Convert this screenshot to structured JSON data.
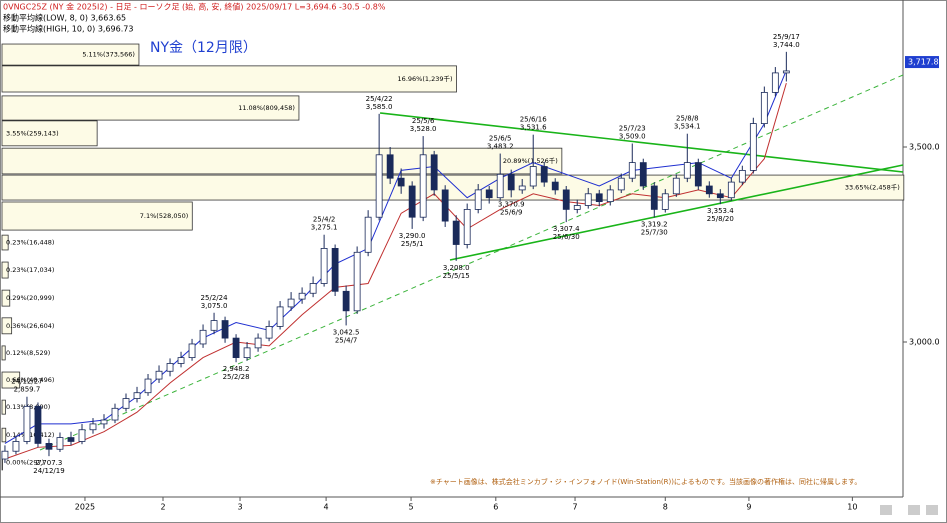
{
  "chart_data": {
    "type": "candlestick",
    "header": "0VNGC25Z (NY 金 2025I2) - 日足 - ローソク足 (始, 高, 安, 終値)  2025/09/17 L=3,694.6 -30.5 -0.8%",
    "ma_low_label": "移動平均線(LOW, 8, 0) 3,663.65",
    "ma_high_label": "移動平均線(HIGH, 10, 0) 3,696.73",
    "title": "NY金（12月限）",
    "note": "※チャート画像は、株式会社ミンカブ・ジ・インフォノイド(Win-Station(R))によるものです。当該画像の著作権は、同社に帰属します。",
    "x": [
      0,
      1,
      2,
      3,
      4,
      5,
      6,
      7,
      8,
      9,
      10,
      11,
      12,
      13,
      14,
      15,
      16,
      17,
      18,
      19,
      20,
      21,
      22,
      23,
      24,
      25,
      26,
      27,
      28,
      29,
      30,
      31,
      32,
      33,
      34,
      35,
      36,
      37,
      38,
      39,
      40,
      41,
      42,
      43,
      44,
      45,
      46,
      47,
      48,
      49,
      50,
      51,
      52,
      53,
      54,
      55,
      56,
      57,
      58,
      59,
      60,
      61,
      62,
      63,
      64,
      65,
      66,
      67,
      68,
      69,
      70,
      71
    ],
    "open": [
      2700,
      2720,
      2745,
      2835,
      2740,
      2725,
      2755,
      2745,
      2775,
      2790,
      2800,
      2830,
      2855,
      2870,
      2905,
      2925,
      2945,
      2960,
      2995,
      3030,
      3055,
      3010,
      2960,
      2985,
      3010,
      3040,
      3090,
      3110,
      3125,
      3150,
      3240,
      3130,
      3080,
      3230,
      3320,
      3480,
      3420,
      3400,
      3320,
      3480,
      3390,
      3310,
      3250,
      3340,
      3390,
      3370,
      3430,
      3390,
      3400,
      3450,
      3410,
      3390,
      3340,
      3350,
      3380,
      3360,
      3390,
      3420,
      3460,
      3400,
      3340,
      3380,
      3420,
      3460,
      3400,
      3380,
      3370,
      3410,
      3440,
      3560,
      3640,
      3690
    ],
    "high": [
      2735,
      2760,
      2859.7,
      2845,
      2752,
      2768,
      2770,
      2790,
      2805,
      2815,
      2842,
      2868,
      2885,
      2918,
      2940,
      2958,
      2975,
      3008,
      3045,
      3075,
      3065,
      3020,
      3000,
      3022,
      3055,
      3105,
      3128,
      3140,
      3168,
      3275.1,
      3250,
      3145,
      3245,
      3338,
      3585,
      3500,
      3445,
      3412,
      3528,
      3490,
      3402,
      3325,
      3355,
      3405,
      3400,
      3483.2,
      3442,
      3418,
      3531.6,
      3462,
      3420,
      3400,
      3365,
      3395,
      3390,
      3402,
      3432,
      3509,
      3470,
      3410,
      3392,
      3430,
      3534.1,
      3470,
      3412,
      3392,
      3422,
      3452,
      3575,
      3655,
      3705,
      3744
    ],
    "low": [
      2690,
      2712,
      2738,
      2730,
      2707.3,
      2718,
      2735,
      2738,
      2765,
      2778,
      2792,
      2822,
      2845,
      2862,
      2895,
      2912,
      2935,
      2952,
      2985,
      3020,
      2998,
      2948.2,
      2952,
      2975,
      3002,
      3032,
      3080,
      3098,
      3115,
      3142,
      3118,
      3042.5,
      3072,
      3220,
      3312,
      3405,
      3380,
      3290,
      3310,
      3375,
      3295,
      3208,
      3240,
      3330,
      3355,
      3362,
      3370.9,
      3380,
      3392,
      3398,
      3378,
      3307.4,
      3330,
      3342,
      3348,
      3350,
      3382,
      3410,
      3390,
      3319.2,
      3332,
      3372,
      3410,
      3390,
      3370,
      3353.4,
      3362,
      3402,
      3432,
      3550,
      3630,
      3668
    ],
    "close": [
      2720,
      2745,
      2835,
      2740,
      2725,
      2755,
      2745,
      2775,
      2790,
      2800,
      2830,
      2855,
      2870,
      2905,
      2925,
      2945,
      2960,
      2995,
      3030,
      3055,
      3010,
      2960,
      2985,
      3010,
      3040,
      3090,
      3110,
      3125,
      3150,
      3240,
      3130,
      3080,
      3230,
      3320,
      3480,
      3420,
      3400,
      3320,
      3480,
      3390,
      3310,
      3250,
      3340,
      3390,
      3370,
      3430,
      3390,
      3400,
      3450,
      3410,
      3390,
      3340,
      3350,
      3380,
      3360,
      3390,
      3420,
      3460,
      3400,
      3340,
      3380,
      3420,
      3460,
      3400,
      3380,
      3370,
      3410,
      3440,
      3560,
      3640,
      3690,
      3695
    ],
    "up_color": "#ffffff",
    "down_color": "#1a2a5a",
    "edge_color": "#1a2a5a",
    "series": [
      {
        "name": "移動平均線(HIGH, 10, 0)",
        "color": "#1f2fd0",
        "x": [
          0,
          3,
          6,
          9,
          12,
          15,
          18,
          21,
          24,
          27,
          30,
          33,
          36,
          39,
          42,
          45,
          48,
          51,
          54,
          57,
          60,
          63,
          66,
          69,
          71
        ],
        "values": [
          2740,
          2790,
          2790,
          2800,
          2860,
          2935,
          3010,
          3050,
          3030,
          3110,
          3200,
          3240,
          3440,
          3450,
          3370,
          3420,
          3460,
          3430,
          3400,
          3440,
          3450,
          3460,
          3420,
          3560,
          3696.73
        ]
      },
      {
        "name": "移動平均線(LOW, 8, 0)",
        "color": "#c03030",
        "x": [
          0,
          3,
          6,
          9,
          12,
          15,
          18,
          21,
          24,
          27,
          30,
          33,
          36,
          39,
          42,
          45,
          48,
          51,
          54,
          57,
          60,
          63,
          66,
          69,
          71
        ],
        "values": [
          2700,
          2730,
          2735,
          2770,
          2820,
          2895,
          2960,
          3000,
          2990,
          3070,
          3140,
          3150,
          3330,
          3380,
          3290,
          3340,
          3380,
          3360,
          3350,
          3380,
          3370,
          3390,
          3370,
          3470,
          3663.65
        ]
      }
    ],
    "xlim": [
      -0.45,
      81.6
    ],
    "ylim": [
      2602.6,
      3876.9
    ],
    "xticks": [
      {
        "value": 7.27,
        "label": "2025"
      },
      {
        "value": 14.36,
        "label": "2"
      },
      {
        "value": 21.36,
        "label": "3"
      },
      {
        "value": 29.18,
        "label": "4"
      },
      {
        "value": 36.9,
        "label": "5"
      },
      {
        "value": 44.6,
        "label": "6"
      },
      {
        "value": 51.8,
        "label": "7"
      },
      {
        "value": 60,
        "label": "8"
      },
      {
        "value": 67.6,
        "label": "9"
      },
      {
        "value": 77,
        "label": "10"
      }
    ],
    "yticks": [
      {
        "value": 3500,
        "label": "3,500.0"
      },
      {
        "value": 3000,
        "label": "3,000.0"
      }
    ],
    "last_price": {
      "value": 3717.8,
      "label": "3,717.8"
    },
    "volume_profile": [
      {
        "label": "5.11%(373,566)",
        "percent": 5.11,
        "low": 3710,
        "high": 3764
      },
      {
        "label": "16.96%(1,239千)",
        "percent": 16.96,
        "low": 3641,
        "high": 3708
      },
      {
        "label": "11.08%(809,458)",
        "percent": 11.08,
        "low": 3569,
        "high": 3631
      },
      {
        "label": "3.55%(259,143)",
        "percent": 3.55,
        "low": 3503,
        "high": 3567
      },
      {
        "label": "20.89%(1,526千)",
        "percent": 20.89,
        "low": 3431,
        "high": 3497
      },
      {
        "label": "33.65%(2,458千)",
        "percent": 33.65,
        "low": 3364,
        "high": 3428
      },
      {
        "label": "7.1%(528,050)",
        "percent": 7.1,
        "low": 3287,
        "high": 3359
      },
      {
        "label": "0.23%(16,448)",
        "percent": 0.23,
        "low": 3236,
        "high": 3274
      },
      {
        "label": "0.23%(17,034)",
        "percent": 0.23,
        "low": 3164,
        "high": 3205
      },
      {
        "label": "0.29%(20,999)",
        "percent": 0.29,
        "low": 3092,
        "high": 3133
      },
      {
        "label": "0.36%(26,604)",
        "percent": 0.36,
        "low": 3021,
        "high": 3062
      },
      {
        "label": "0.12%(8,529)",
        "percent": 0.12,
        "low": 2954,
        "high": 2990
      },
      {
        "label": "0.66%(48,496)",
        "percent": 0.66,
        "low": 2882,
        "high": 2923
      },
      {
        "label": "0.13%(8,990)",
        "percent": 0.13,
        "low": 2815,
        "high": 2851
      },
      {
        "label": "0.14%(10,412)",
        "percent": 0.14,
        "low": 2744,
        "high": 2779
      },
      {
        "label": "0.00%(297)",
        "percent": 0.0,
        "low": 2672,
        "high": 2710
      }
    ],
    "annotations": [
      {
        "date": "24/12/27",
        "price": {
          "value": 2859.7,
          "label": "2,859.7"
        }
      },
      {
        "date": "24/12/19",
        "price": {
          "value": 2707.3,
          "label": "2,707.3"
        }
      },
      {
        "date": "25/2/24",
        "price": {
          "value": 3075.0,
          "label": "3,075.0"
        }
      },
      {
        "date": "25/2/28",
        "price": {
          "value": 2948.2,
          "label": "2,948.2"
        }
      },
      {
        "date": "25/4/2",
        "price": {
          "value": 3275.1,
          "label": "3,275.1"
        }
      },
      {
        "date": "25/4/7",
        "price": {
          "value": 3042.5,
          "label": "3,042.5"
        }
      },
      {
        "date": "25/4/22",
        "price": {
          "value": 3585.0,
          "label": "3,585.0"
        }
      },
      {
        "date": "25/5/1",
        "price": {
          "value": 3290.0,
          "label": "3,290.0"
        }
      },
      {
        "date": "25/5/6",
        "price": {
          "value": 3528.0,
          "label": "3,528.0"
        }
      },
      {
        "date": "25/5/15",
        "price": {
          "value": 3208.0,
          "label": "3,208.0"
        }
      },
      {
        "date": "25/6/5",
        "price": {
          "value": 3483.2,
          "label": "3,483.2"
        }
      },
      {
        "date": "25/6/9",
        "price": {
          "value": 3370.9,
          "label": "3,370.9"
        }
      },
      {
        "date": "25/6/16",
        "price": {
          "value": 3531.6,
          "label": "3,531.6"
        }
      },
      {
        "date": "25/6/30",
        "price": {
          "value": 3307.4,
          "label": "3,307.4"
        }
      },
      {
        "date": "25/7/23",
        "price": {
          "value": 3509.0,
          "label": "3,509.0"
        }
      },
      {
        "date": "25/7/30",
        "price": {
          "value": 3319.2,
          "label": "3,319.2"
        }
      },
      {
        "date": "25/8/8",
        "price": {
          "value": 3534.1,
          "label": "3,534.1"
        }
      },
      {
        "date": "25/8/20",
        "price": {
          "value": 3353.4,
          "label": "3,353.4"
        }
      },
      {
        "date": "25/9/17",
        "price": {
          "value": 3744.0,
          "label": "3,744.0"
        }
      }
    ]
  }
}
